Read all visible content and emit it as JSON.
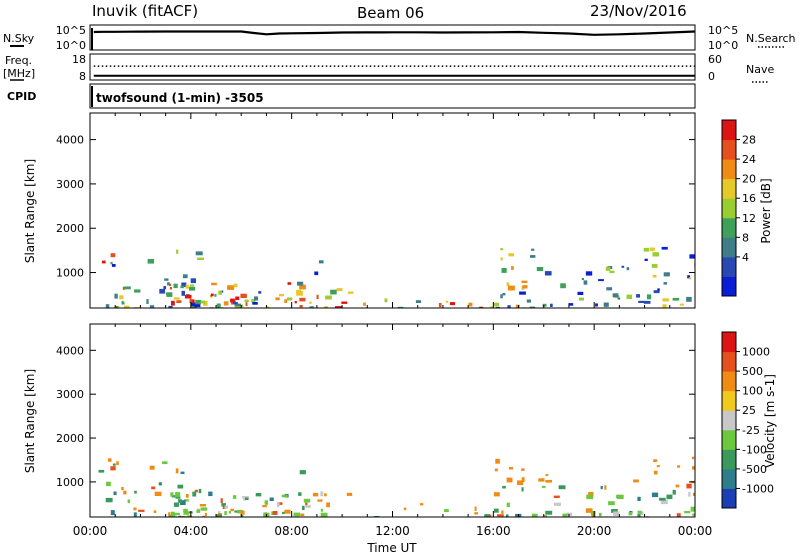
{
  "header": {
    "left_title": "Inuvik (fitACF)",
    "center_title": "Beam 06",
    "date": "23/Nov/2016"
  },
  "strip_panels": {
    "nsky_label": "N.Sky",
    "nsearch_label": "N.Search",
    "freq_label_top": "Freq.",
    "freq_label_unit": "[MHz]",
    "nave_label": "Nave",
    "cpid_label": "CPID",
    "cpid_text": "twofsound (1-min) -3505"
  },
  "chart_data": [
    {
      "type": "line",
      "name": "noise-strip",
      "ylabel_left": "N.Sky",
      "ylabel_right": "N.Search",
      "left_ticks": [
        "10^5",
        "10^0"
      ],
      "right_ticks": [
        "10^5",
        "10^0"
      ],
      "series": [
        {
          "name": "N.Sky",
          "style": "solid",
          "x": [
            0.15,
            0.5,
            1,
            2,
            3,
            4,
            5,
            6,
            6.5,
            7,
            7.5,
            8,
            9,
            10,
            11,
            12,
            13,
            14,
            15,
            16,
            17,
            18,
            19,
            20,
            21,
            22,
            23,
            24
          ],
          "y": [
            4.2,
            4.25,
            4.25,
            4.28,
            4.3,
            4.3,
            4.3,
            4.3,
            4.0,
            3.75,
            3.9,
            3.95,
            4.0,
            4.1,
            4.12,
            4.15,
            4.15,
            4.1,
            4.12,
            4.15,
            4.2,
            4.05,
            3.9,
            3.65,
            3.75,
            3.9,
            4.1,
            4.3
          ]
        },
        {
          "name": "N.Search",
          "style": "dotted"
        }
      ]
    },
    {
      "type": "line",
      "name": "frequency-strip",
      "ylabel_left": "Freq. [MHz]",
      "ylabel_right": "Nave",
      "left_ticks": [
        "18",
        "8"
      ],
      "right_ticks": [
        "60",
        "0"
      ],
      "series": [
        {
          "name": "Freq.",
          "style": "solid",
          "x": [
            0.15,
            24
          ],
          "y": [
            10,
            10
          ]
        },
        {
          "name": "Nave",
          "style": "dotted",
          "x": [
            0.15,
            24
          ],
          "y": [
            32,
            32
          ]
        }
      ]
    },
    {
      "type": "heatmap",
      "name": "power",
      "ylabel": "Slant Range [km]",
      "yticks": [
        1000,
        2000,
        3000,
        4000
      ],
      "ylim": [
        200,
        4600
      ],
      "xlim": [
        0,
        24
      ],
      "colorbar_label": "Power [dB]",
      "colorbar_ticks": [
        "28",
        "24",
        "20",
        "16",
        "12",
        "8",
        "4"
      ],
      "colors": [
        "#0a1ed6",
        "#2848b4",
        "#3f7d8a",
        "#3fa05a",
        "#9acd32",
        "#e6c828",
        "#f08c14",
        "#e6501e",
        "#dc1414"
      ]
    },
    {
      "type": "heatmap",
      "name": "velocity",
      "ylabel": "Slant Range [km]",
      "yticks": [
        1000,
        2000,
        3000,
        4000
      ],
      "ylim": [
        200,
        4600
      ],
      "xlim": [
        0,
        24
      ],
      "xticks": [
        "00:00",
        "04:00",
        "08:00",
        "12:00",
        "16:00",
        "20:00",
        "00:00"
      ],
      "xlabel": "Time UT",
      "colorbar_label": "Velocity [m s-1]",
      "colorbar_ticks": [
        "1000",
        "500",
        "100",
        "25",
        "-25",
        "-100",
        "-500",
        "-1000"
      ],
      "colors": [
        "#1a3fb4",
        "#2e7d8c",
        "#3a9a5c",
        "#6cc83c",
        "#c8c8c8",
        "#f0c81e",
        "#f08c14",
        "#e6501e",
        "#dc1414"
      ]
    }
  ]
}
